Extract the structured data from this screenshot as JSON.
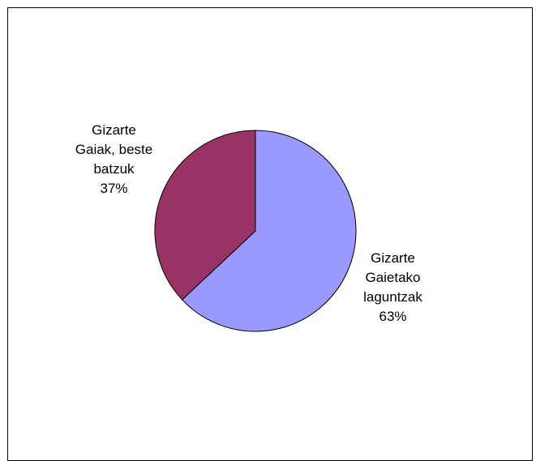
{
  "chart_data": {
    "type": "pie",
    "title": "",
    "categories": [
      "Gizarte Gaietako laguntzak",
      "Gizarte Gaiak, beste batzuk"
    ],
    "values": [
      63,
      37
    ],
    "colors": [
      "#9999ff",
      "#993366"
    ],
    "start_angle_deg": 0,
    "direction": "clockwise",
    "labels": [
      {
        "lines": [
          "Gizarte",
          "Gaietako",
          "laguntzak",
          "63%"
        ]
      },
      {
        "lines": [
          "Gizarte",
          "Gaiak, beste",
          "batzuk",
          "37%"
        ]
      }
    ],
    "legend": "none"
  }
}
